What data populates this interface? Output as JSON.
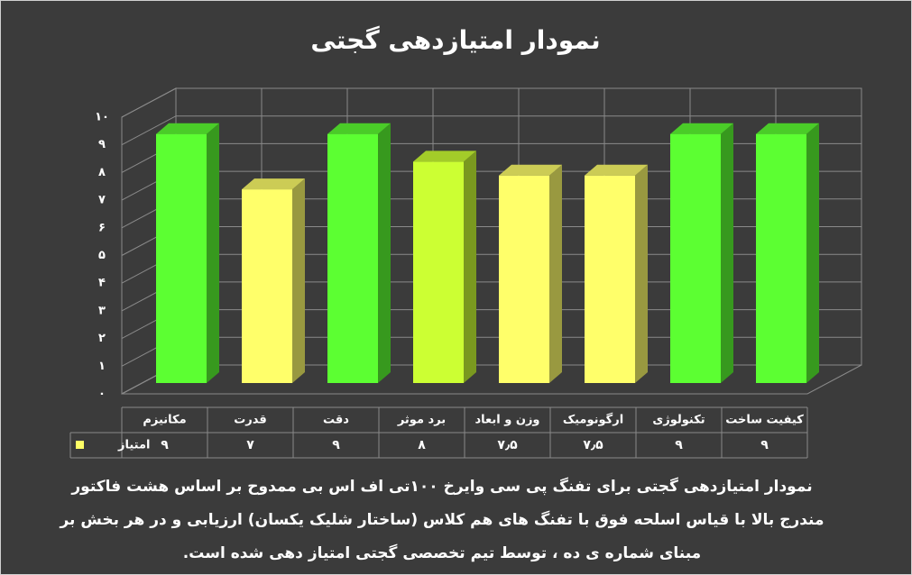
{
  "chart_data": {
    "type": "bar",
    "title": "نمودار امتیازدهی گجتی",
    "categories": [
      "مکانیزم",
      "قدرت",
      "دقت",
      "برد موثر",
      "وزن و ابعاد",
      "ارگونومیک",
      "تکنولوژی",
      "کیفیت ساخت"
    ],
    "series": [
      {
        "name": "امتیاز",
        "color": "#ffff66",
        "values": [
          9,
          7,
          9,
          8,
          7.5,
          7.5,
          9,
          9
        ],
        "value_labels": [
          "۹",
          "۷",
          "۹",
          "۸",
          "۷٫۵",
          "۷٫۵",
          "۹",
          "۹"
        ],
        "colors": [
          "#5cff32",
          "#ffff6a",
          "#5cff32",
          "#ccff33",
          "#ffff6a",
          "#ffff6a",
          "#5cff32",
          "#5cff32"
        ]
      }
    ],
    "ylim": [
      0,
      10
    ],
    "yticks": [
      {
        "value": 0,
        "label": "۰"
      },
      {
        "value": 1,
        "label": "۱"
      },
      {
        "value": 2,
        "label": "۲"
      },
      {
        "value": 3,
        "label": "۳"
      },
      {
        "value": 4,
        "label": "۴"
      },
      {
        "value": 5,
        "label": "۵"
      },
      {
        "value": 6,
        "label": "۶"
      },
      {
        "value": 7,
        "label": "۷"
      },
      {
        "value": 8,
        "label": "۸"
      },
      {
        "value": 9,
        "label": "۹"
      },
      {
        "value": 10,
        "label": "۱۰"
      }
    ],
    "grid": true
  },
  "caption": {
    "lines": [
      "نمودار امتیازدهی گجتی برای تفنگ پی سی وایرخ ۱۰۰تی اف اس بی ممدوح  بر اساس هشت فاکتور",
      "مندرج بالا با قیاس اسلحه فوق با تفنگ های هم کلاس (ساختار شلیک یکسان) ارزیابی و در هر بخش بر",
      "مبنای شماره ی ده ، توسط تیم تخصصی گجتی امتیاز دهی شده است."
    ]
  }
}
